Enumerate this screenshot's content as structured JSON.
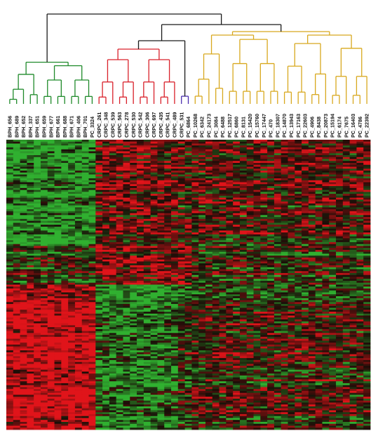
{
  "figure": {
    "type": "hierarchical clustering dendrogram with expression heatmap",
    "heatmap_colors": {
      "high": "#e0141a",
      "low": "#30b030",
      "mid": "#1a0e08"
    },
    "cluster_colors": {
      "bph": "#1f8a2a",
      "crpc": "#d9202a",
      "outlier": "#4b2fb0",
      "pc": "#d8a81e",
      "upper": "#1a1a1a"
    }
  },
  "samples": [
    {
      "name": "BPH_656",
      "group": "bph"
    },
    {
      "name": "BPH_689",
      "group": "bph"
    },
    {
      "name": "BPH_652",
      "group": "bph"
    },
    {
      "name": "BPH_337",
      "group": "bph"
    },
    {
      "name": "BPH_651",
      "group": "bph"
    },
    {
      "name": "BPH_659",
      "group": "bph"
    },
    {
      "name": "BPH_677",
      "group": "bph"
    },
    {
      "name": "BPH_661",
      "group": "bph"
    },
    {
      "name": "BPH_688",
      "group": "bph"
    },
    {
      "name": "BPH_671",
      "group": "bph"
    },
    {
      "name": "BPH_406",
      "group": "bph"
    },
    {
      "name": "BPH_701",
      "group": "bph"
    },
    {
      "name": "PC_3324",
      "group": "bph"
    },
    {
      "name": "CRPC_261",
      "group": "crpc"
    },
    {
      "name": "CRPC_348",
      "group": "crpc"
    },
    {
      "name": "CRPC_539",
      "group": "crpc"
    },
    {
      "name": "CRPC_563",
      "group": "crpc"
    },
    {
      "name": "CRPC_278",
      "group": "crpc"
    },
    {
      "name": "CRPC_530",
      "group": "crpc"
    },
    {
      "name": "CRPC_542",
      "group": "crpc"
    },
    {
      "name": "CRPC_306",
      "group": "crpc"
    },
    {
      "name": "CRPC_697",
      "group": "crpc"
    },
    {
      "name": "CRPC_435",
      "group": "crpc"
    },
    {
      "name": "CRPC_541",
      "group": "crpc"
    },
    {
      "name": "CRPC_489",
      "group": "crpc"
    },
    {
      "name": "CRPC_531",
      "group": "outlier"
    },
    {
      "name": "PC_6864",
      "group": "outlier"
    },
    {
      "name": "PC_10268",
      "group": "pc"
    },
    {
      "name": "PC_6342",
      "group": "pc"
    },
    {
      "name": "PC_24173",
      "group": "pc"
    },
    {
      "name": "PC_3084",
      "group": "pc"
    },
    {
      "name": "PC_6488",
      "group": "pc"
    },
    {
      "name": "PC_12517",
      "group": "pc"
    },
    {
      "name": "PC_6860",
      "group": "pc"
    },
    {
      "name": "PC_8131",
      "group": "pc"
    },
    {
      "name": "PC_15420",
      "group": "pc"
    },
    {
      "name": "PC_15760",
      "group": "pc"
    },
    {
      "name": "PC_17447",
      "group": "pc"
    },
    {
      "name": "PC_470",
      "group": "pc"
    },
    {
      "name": "PC_18307",
      "group": "pc"
    },
    {
      "name": "PC_14870",
      "group": "pc"
    },
    {
      "name": "PC_13943",
      "group": "pc"
    },
    {
      "name": "PC_17163",
      "group": "pc"
    },
    {
      "name": "PC_22603",
      "group": "pc"
    },
    {
      "name": "PC_4906",
      "group": "pc"
    },
    {
      "name": "PC_8438",
      "group": "pc"
    },
    {
      "name": "PC_20873",
      "group": "pc"
    },
    {
      "name": "PC_15194",
      "group": "pc"
    },
    {
      "name": "PC_6174",
      "group": "pc"
    },
    {
      "name": "PC_7675",
      "group": "pc"
    },
    {
      "name": "PC_16403",
      "group": "pc"
    },
    {
      "name": "PC_4786",
      "group": "pc"
    },
    {
      "name": "PC_22392",
      "group": "pc"
    }
  ],
  "clusters": {
    "bph": "BPH cluster",
    "crpc": "CRPC cluster",
    "outlier": "outlier pair",
    "pc": "PC cluster"
  }
}
